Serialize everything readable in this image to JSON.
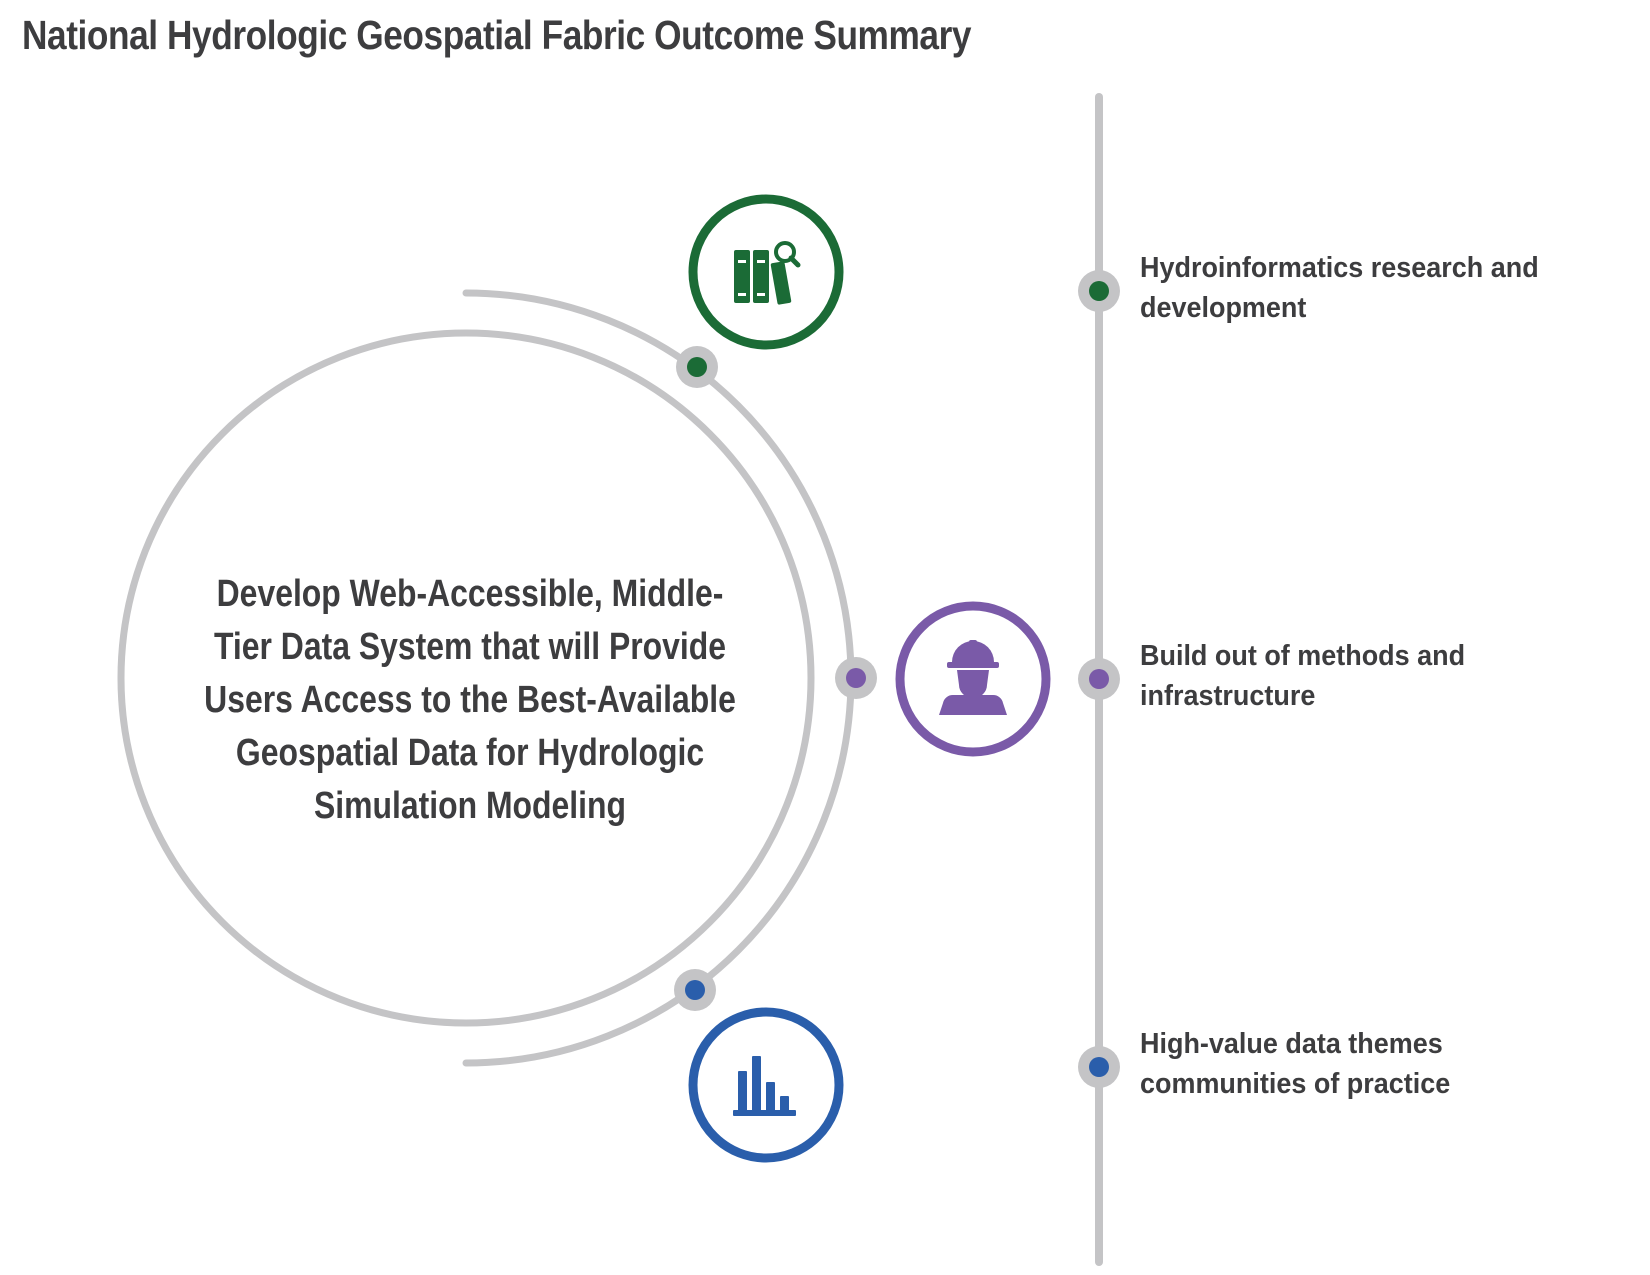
{
  "title": "National Hydrologic Geospatial Fabric Outcome Summary",
  "center": {
    "text": "Develop Web-Accessible, Middle-Tier Data System that will Provide Users Access to the Best-Available Geospatial Data for Hydrologic Simulation Modeling"
  },
  "colors": {
    "line": "#c4c4c6",
    "text": "#3d3d3f",
    "green": "#1b6b36",
    "purple": "#7a5aa8",
    "blue": "#2a5eab"
  },
  "outcomes": [
    {
      "text": "Hydroinformatics research and development",
      "icon": "books-magnifier-icon",
      "color": "#1b6b36"
    },
    {
      "text": "Build out of methods and infrastructure",
      "icon": "worker-hardhat-icon",
      "color": "#7a5aa8"
    },
    {
      "text": "High-value data themes communities of practice",
      "icon": "bar-chart-icon",
      "color": "#2a5eab"
    }
  ]
}
